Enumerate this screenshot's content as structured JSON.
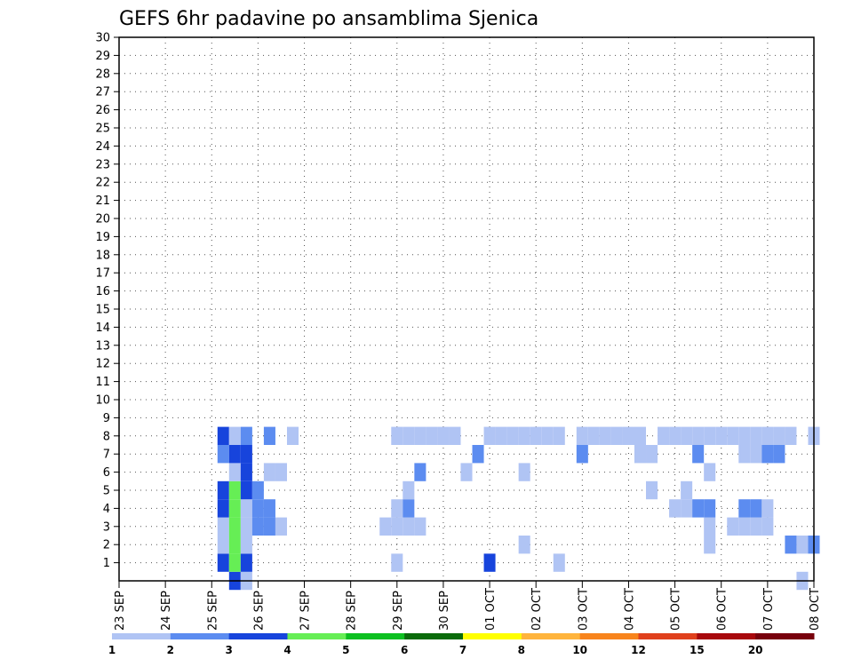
{
  "chart_data": {
    "type": "heatmap",
    "title": "GEFS 6hr padavine po ansamblima Sjenica",
    "x_tick_labels": [
      "23 SEP",
      "24 SEP",
      "25 SEP",
      "26 SEP",
      "27 SEP",
      "28 SEP",
      "29 SEP",
      "30 SEP",
      "01 OCT",
      "02 OCT",
      "03 OCT",
      "04 OCT",
      "05 OCT",
      "06 OCT",
      "07 OCT",
      "08 OCT"
    ],
    "y_tick_labels": [
      "1",
      "2",
      "3",
      "4",
      "5",
      "6",
      "7",
      "8",
      "9",
      "10",
      "11",
      "12",
      "13",
      "14",
      "15",
      "16",
      "17",
      "18",
      "19",
      "20",
      "21",
      "22",
      "23",
      "24",
      "25",
      "26",
      "27",
      "28",
      "29",
      "30"
    ],
    "xlim_days": [
      0,
      15
    ],
    "ylim_members": [
      0,
      30
    ],
    "grid": true,
    "colorbar": {
      "labels": [
        "1",
        "2",
        "3",
        "4",
        "5",
        "6",
        "7",
        "8",
        "10",
        "12",
        "15",
        "20"
      ],
      "colors": [
        "#b0c4f4",
        "#5c8cf0",
        "#1744dc",
        "#66ee55",
        "#0cc020",
        "#0a6b0a",
        "#ffff00",
        "#ffb43c",
        "#f8841c",
        "#e0401c",
        "#a8080c",
        "#78000c"
      ]
    },
    "cells": [
      [
        0,
        2.5,
        5,
        3
      ],
      [
        0,
        2.75,
        5,
        1
      ],
      [
        0,
        14.75,
        1,
        1
      ],
      [
        1,
        2.25,
        5,
        3
      ],
      [
        1,
        2.5,
        5,
        4
      ],
      [
        1,
        2.75,
        5,
        3
      ],
      [
        1,
        6,
        5,
        1
      ],
      [
        1,
        8,
        5,
        3
      ],
      [
        1,
        9.5,
        5,
        1
      ],
      [
        2,
        2.25,
        5,
        1
      ],
      [
        2,
        2.5,
        5,
        4
      ],
      [
        2,
        2.75,
        5,
        1
      ],
      [
        2,
        8.75,
        5,
        1
      ],
      [
        2,
        12.75,
        5,
        1
      ],
      [
        2,
        14.5,
        5,
        2
      ],
      [
        2,
        14.75,
        5,
        1
      ],
      [
        2,
        15,
        5,
        2
      ],
      [
        3,
        2.25,
        5,
        1
      ],
      [
        3,
        2.5,
        5,
        4
      ],
      [
        3,
        2.75,
        5,
        1
      ],
      [
        3,
        3,
        5,
        2
      ],
      [
        3,
        3.25,
        5,
        2
      ],
      [
        3,
        3.5,
        5,
        1
      ],
      [
        3,
        5.75,
        5,
        1
      ],
      [
        3,
        6,
        5,
        1
      ],
      [
        3,
        6.25,
        5,
        1
      ],
      [
        3,
        6.5,
        5,
        1
      ],
      [
        3,
        12.75,
        5,
        1
      ],
      [
        3,
        13.25,
        5,
        1
      ],
      [
        3,
        13.5,
        5,
        1
      ],
      [
        3,
        13.75,
        5,
        1
      ],
      [
        3,
        14,
        5,
        1
      ],
      [
        4,
        2.25,
        5,
        3
      ],
      [
        4,
        2.5,
        5,
        4
      ],
      [
        4,
        2.75,
        5,
        1
      ],
      [
        4,
        3,
        5,
        2
      ],
      [
        4,
        3.25,
        5,
        2
      ],
      [
        4,
        6,
        5,
        1
      ],
      [
        4,
        6.25,
        5,
        2
      ],
      [
        4,
        12,
        5,
        1
      ],
      [
        4,
        12.25,
        5,
        1
      ],
      [
        4,
        12.5,
        5,
        2
      ],
      [
        4,
        12.75,
        5,
        2
      ],
      [
        4,
        13.5,
        5,
        2
      ],
      [
        4,
        13.75,
        5,
        2
      ],
      [
        4,
        14,
        5,
        1
      ],
      [
        5,
        2.25,
        5,
        3
      ],
      [
        5,
        2.5,
        5,
        4
      ],
      [
        5,
        2.75,
        5,
        3
      ],
      [
        5,
        3,
        5,
        2
      ],
      [
        5,
        6.25,
        5,
        1
      ],
      [
        5,
        11.5,
        5,
        1
      ],
      [
        5,
        12.25,
        5,
        1
      ],
      [
        6,
        2.5,
        5,
        1
      ],
      [
        6,
        2.75,
        5,
        3
      ],
      [
        6,
        3.25,
        5,
        1
      ],
      [
        6,
        3.5,
        5,
        1
      ],
      [
        6,
        6.5,
        5,
        2
      ],
      [
        6,
        7.5,
        5,
        1
      ],
      [
        6,
        8.75,
        5,
        1
      ],
      [
        6,
        12.75,
        5,
        1
      ],
      [
        7,
        2.25,
        5,
        2
      ],
      [
        7,
        2.5,
        5,
        3
      ],
      [
        7,
        2.75,
        5,
        3
      ],
      [
        7,
        7.75,
        5,
        2
      ],
      [
        7,
        10,
        5,
        2
      ],
      [
        7,
        11.25,
        5,
        1
      ],
      [
        7,
        11.5,
        5,
        1
      ],
      [
        7,
        12.5,
        5,
        2
      ],
      [
        7,
        13.5,
        5,
        1
      ],
      [
        7,
        13.75,
        5,
        1
      ],
      [
        7,
        14,
        5,
        2
      ],
      [
        7,
        14.25,
        5,
        2
      ],
      [
        8,
        2.25,
        5,
        3
      ],
      [
        8,
        2.5,
        5,
        1
      ],
      [
        8,
        2.75,
        5,
        2
      ],
      [
        8,
        3.25,
        5,
        2
      ],
      [
        8,
        3.75,
        5,
        1
      ],
      [
        8,
        6,
        5,
        1
      ],
      [
        8,
        6.25,
        5,
        1
      ],
      [
        8,
        6.5,
        5,
        1
      ],
      [
        8,
        6.75,
        5,
        1
      ],
      [
        8,
        7,
        5,
        1
      ],
      [
        8,
        7.25,
        5,
        1
      ],
      [
        8,
        8,
        5,
        1
      ],
      [
        8,
        8.25,
        5,
        1
      ],
      [
        8,
        8.5,
        5,
        1
      ],
      [
        8,
        8.75,
        5,
        1
      ],
      [
        8,
        9,
        5,
        1
      ],
      [
        8,
        9.25,
        5,
        1
      ],
      [
        8,
        9.5,
        5,
        1
      ],
      [
        8,
        10,
        5,
        1
      ],
      [
        8,
        10.25,
        5,
        1
      ],
      [
        8,
        10.5,
        5,
        1
      ],
      [
        8,
        10.75,
        5,
        1
      ],
      [
        8,
        11,
        5,
        1
      ],
      [
        8,
        11.25,
        5,
        1
      ],
      [
        8,
        11.75,
        5,
        1
      ],
      [
        8,
        12,
        5,
        1
      ],
      [
        8,
        12.25,
        5,
        1
      ],
      [
        8,
        12.5,
        5,
        1
      ],
      [
        8,
        12.75,
        5,
        1
      ],
      [
        8,
        13,
        5,
        1
      ],
      [
        8,
        13.25,
        5,
        1
      ],
      [
        8,
        13.5,
        5,
        1
      ],
      [
        8,
        13.75,
        5,
        1
      ],
      [
        8,
        14,
        5,
        1
      ],
      [
        8,
        14.25,
        5,
        1
      ],
      [
        8,
        14.5,
        5,
        1
      ],
      [
        8,
        15,
        5,
        1
      ]
    ]
  }
}
